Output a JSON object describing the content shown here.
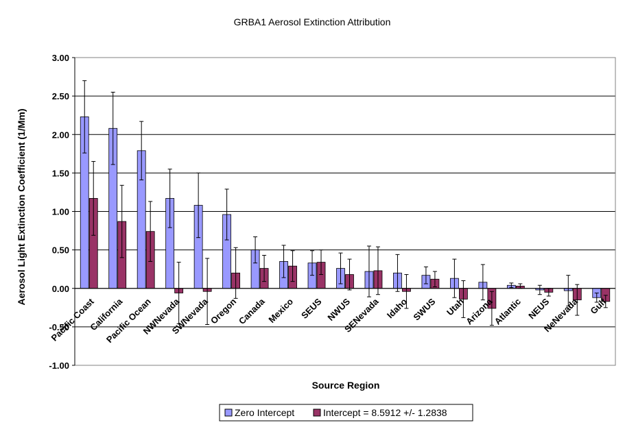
{
  "chart_data": {
    "type": "bar",
    "title": "GRBA1 Aerosol Extinction Attribution",
    "xlabel": "Source Region",
    "ylabel": "Aerosol Light Extinction Coefficient (1/Mm)",
    "ylim": [
      -1.0,
      3.0
    ],
    "yticks": [
      "3.00",
      "2.50",
      "2.00",
      "1.50",
      "1.00",
      "0.50",
      "0.00",
      "-0.50",
      "-1.00"
    ],
    "ytick_values": [
      3.0,
      2.5,
      2.0,
      1.5,
      1.0,
      0.5,
      0.0,
      -0.5,
      -1.0
    ],
    "grid": "horizontal",
    "legend_position": "bottom",
    "categories": [
      "Pacific Coast",
      "California",
      "Pacific Ocean",
      "NWNevada",
      "SWNevada",
      "Oregon",
      "Canada",
      "Mexico",
      "SEUS",
      "NWUS",
      "SENevada",
      "Idaho",
      "SWUS",
      "Utah",
      "Arizona",
      "Atlantic",
      "NEUS",
      "NeNevada",
      "Gulf"
    ],
    "series": [
      {
        "name": "Zero Intercept",
        "color": "#9999ff",
        "values": [
          2.23,
          2.08,
          1.79,
          1.17,
          1.08,
          0.96,
          0.5,
          0.35,
          0.33,
          0.26,
          0.22,
          0.2,
          0.17,
          0.13,
          0.08,
          0.04,
          -0.02,
          -0.03,
          -0.12
        ],
        "errors": [
          0.47,
          0.47,
          0.38,
          0.38,
          0.42,
          0.33,
          0.17,
          0.21,
          0.16,
          0.2,
          0.33,
          0.24,
          0.11,
          0.25,
          0.23,
          0.03,
          0.06,
          0.2,
          0.06
        ]
      },
      {
        "name": "Intercept = 8.5912 +/- 1.2838",
        "color": "#993366",
        "values": [
          1.17,
          0.87,
          0.74,
          -0.06,
          -0.04,
          0.2,
          0.26,
          0.29,
          0.34,
          0.18,
          0.23,
          -0.04,
          0.12,
          -0.14,
          -0.26,
          0.03,
          -0.05,
          -0.15,
          -0.17
        ],
        "errors": [
          0.48,
          0.47,
          0.39,
          0.4,
          0.43,
          0.33,
          0.17,
          0.2,
          0.16,
          0.2,
          0.31,
          0.22,
          0.1,
          0.24,
          0.22,
          0.03,
          0.05,
          0.2,
          0.08
        ]
      }
    ]
  }
}
